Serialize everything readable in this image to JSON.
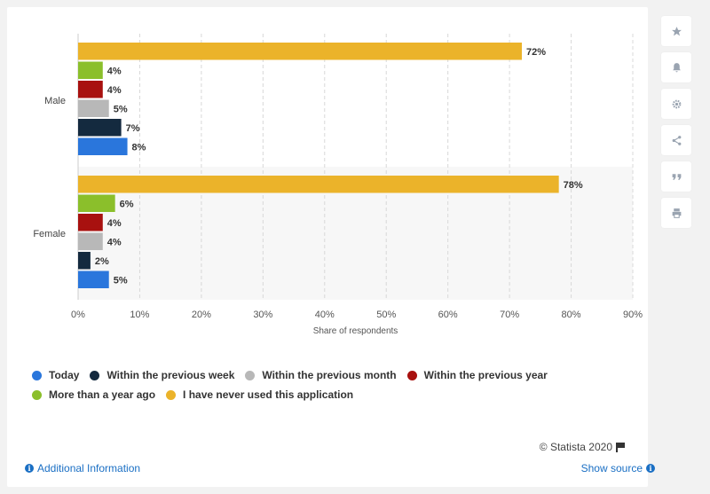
{
  "chart_data": {
    "type": "bar",
    "orientation": "horizontal",
    "categories": [
      "Male",
      "Female"
    ],
    "series": [
      {
        "name": "I have never used this application",
        "color": "#ebb32a",
        "values": [
          72,
          78
        ]
      },
      {
        "name": "More than a year ago",
        "color": "#8bbf2b",
        "values": [
          4,
          6
        ]
      },
      {
        "name": "Within the previous year",
        "color": "#a8110f",
        "values": [
          4,
          4
        ]
      },
      {
        "name": "Within the previous month",
        "color": "#b8b8b8",
        "values": [
          5,
          4
        ]
      },
      {
        "name": "Within the previous week",
        "color": "#142a3f",
        "values": [
          7,
          2
        ]
      },
      {
        "name": "Today",
        "color": "#2a76dc",
        "values": [
          8,
          5
        ]
      }
    ],
    "value_labels": [
      [
        "72%",
        "4%",
        "4%",
        "5%",
        "7%",
        "8%"
      ],
      [
        "78%",
        "6%",
        "4%",
        "4%",
        "2%",
        "5%"
      ]
    ],
    "x_ticks": [
      "0%",
      "10%",
      "20%",
      "30%",
      "40%",
      "50%",
      "60%",
      "70%",
      "80%",
      "90%"
    ],
    "xlim": [
      0,
      90
    ],
    "xlabel": "Share of respondents",
    "ylabel": "",
    "grid": true,
    "legend_position": "bottom"
  },
  "legend": {
    "row1": [
      {
        "label": "Today",
        "color": "#2a76dc"
      },
      {
        "label": "Within the previous week",
        "color": "#142a3f"
      },
      {
        "label": "Within the previous month",
        "color": "#b8b8b8"
      },
      {
        "label": "Within the previous year",
        "color": "#a8110f"
      }
    ],
    "row2": [
      {
        "label": "More than a year ago",
        "color": "#8bbf2b"
      },
      {
        "label": "I have never used this application",
        "color": "#ebb32a"
      }
    ]
  },
  "footer": {
    "copyright": "© Statista 2020",
    "additional_info": "Additional Information",
    "show_source": "Show source"
  },
  "sidebar": {
    "icons": [
      "star-icon",
      "bell-icon",
      "gear-icon",
      "share-icon",
      "quote-icon",
      "print-icon"
    ]
  }
}
